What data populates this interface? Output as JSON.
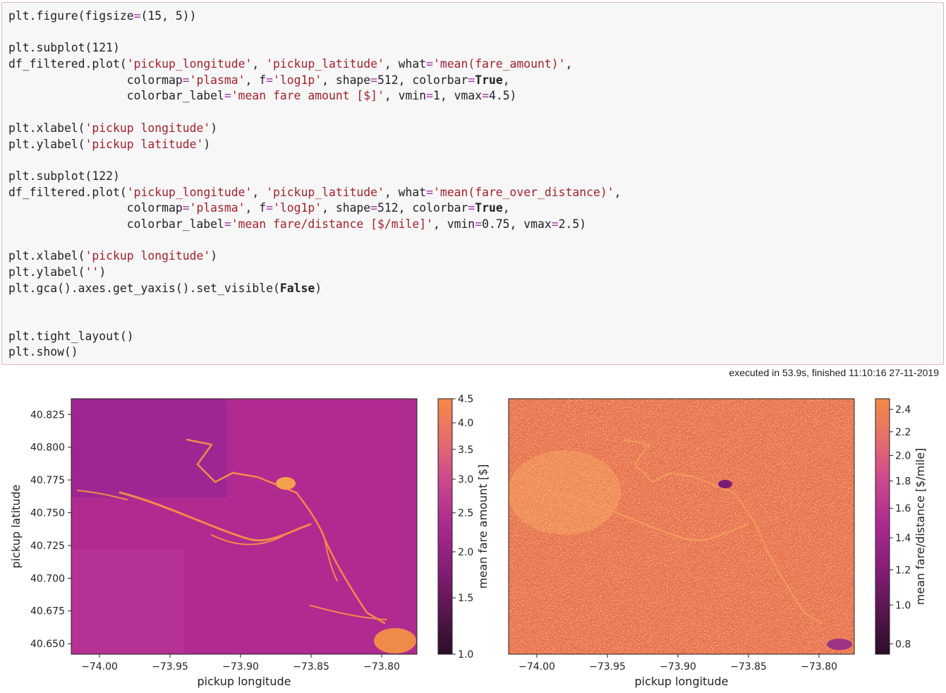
{
  "code_lines": [
    "plt.figure(figsize=(15, 5))",
    "",
    "plt.subplot(121)",
    "df_filtered.plot('pickup_longitude', 'pickup_latitude', what='mean(fare_amount)',",
    "                 colormap='plasma', f='log1p', shape=512, colorbar=True,",
    "                 colorbar_label='mean fare amount [$]', vmin=1, vmax=4.5)",
    "",
    "plt.xlabel('pickup longitude')",
    "plt.ylabel('pickup latitude')",
    "",
    "plt.subplot(122)",
    "df_filtered.plot('pickup_longitude', 'pickup_latitude', what='mean(fare_over_distance)',",
    "                 colormap='plasma', f='log1p', shape=512, colorbar=True,",
    "                 colorbar_label='mean fare/distance [$/mile]', vmin=0.75, vmax=2.5)",
    "",
    "plt.xlabel('pickup longitude')",
    "plt.ylabel('')",
    "plt.gca().axes.get_yaxis().set_visible(False)",
    "",
    "",
    "plt.tight_layout()",
    "plt.show()"
  ],
  "execution_status": "executed in 53.9s, finished 11:10:16 27-11-2019",
  "chart_data": [
    {
      "type": "heatmap",
      "title": "",
      "xlabel": "pickup longitude",
      "ylabel": "pickup latitude",
      "xlim": [
        -74.02,
        -73.775
      ],
      "ylim": [
        40.642,
        40.837
      ],
      "x_ticks": [
        -74.0,
        -73.95,
        -73.9,
        -73.85,
        -73.8
      ],
      "x_tick_labels": [
        "−74.00",
        "−73.95",
        "−73.90",
        "−73.85",
        "−73.80"
      ],
      "y_ticks": [
        40.65,
        40.675,
        40.7,
        40.725,
        40.75,
        40.775,
        40.8,
        40.825
      ],
      "y_tick_labels": [
        "40.650",
        "40.675",
        "40.700",
        "40.725",
        "40.750",
        "40.775",
        "40.800",
        "40.825"
      ],
      "colormap": "plasma",
      "colorbar_label": "mean fare amount [$]",
      "colorbar_range": [
        1,
        4.5
      ],
      "colorbar_scale": "log1p",
      "colorbar_ticks": [
        1.0,
        1.5,
        2.0,
        2.5,
        3.0,
        3.5,
        4.0,
        4.5
      ],
      "colorbar_tick_labels": [
        "1.0",
        "1.5",
        "2.0",
        "2.5",
        "3.0",
        "3.5",
        "4.0",
        "4.5"
      ],
      "base_color": "#b02a90"
    },
    {
      "type": "heatmap",
      "title": "",
      "xlabel": "pickup longitude",
      "ylabel": "",
      "xlim": [
        -74.02,
        -73.775
      ],
      "ylim": [
        40.642,
        40.837
      ],
      "x_ticks": [
        -74.0,
        -73.95,
        -73.9,
        -73.85,
        -73.8
      ],
      "x_tick_labels": [
        "−74.00",
        "−73.95",
        "−73.90",
        "−73.85",
        "−73.80"
      ],
      "colormap": "plasma",
      "colorbar_label": "mean fare/distance [$/mile]",
      "colorbar_range": [
        0.75,
        2.5
      ],
      "colorbar_scale": "log1p",
      "colorbar_ticks": [
        0.8,
        1.0,
        1.2,
        1.4,
        1.6,
        1.8,
        2.0,
        2.2,
        2.4
      ],
      "colorbar_tick_labels": [
        "0.8",
        "1.0",
        "1.2",
        "1.4",
        "1.6",
        "1.8",
        "2.0",
        "2.2",
        "2.4"
      ],
      "base_color": "#e8744f"
    }
  ]
}
